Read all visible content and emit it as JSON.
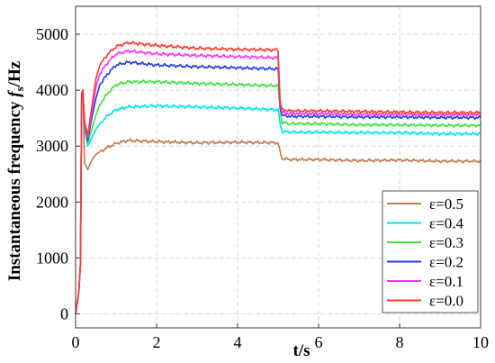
{
  "chart_data": {
    "type": "line",
    "xlabel_main": "t/s",
    "ylabel_parts": [
      "Instantaneous frequency ",
      "f",
      "s",
      "/Hz"
    ],
    "xlim": [
      0,
      10
    ],
    "ylim": [
      -250,
      5500
    ],
    "xticks": [
      "0",
      "2",
      "4",
      "6",
      "8",
      "10"
    ],
    "yticks": [
      "0",
      "1000",
      "2000",
      "3000",
      "4000",
      "5000"
    ],
    "grid": true,
    "legend_position": "bottom-right",
    "series": [
      {
        "name": "ε=0.5",
        "color": "#c07a50",
        "x": [
          0.0,
          0.08,
          0.12,
          0.15,
          0.18,
          0.22,
          0.3,
          0.4,
          0.5,
          0.6,
          0.8,
          1.0,
          1.3,
          2.0,
          3.0,
          4.0,
          5.0,
          5.05,
          5.1,
          5.3,
          6.0,
          7.0,
          8.0,
          9.0,
          10.0
        ],
        "y": [
          0,
          400,
          900,
          3950,
          4000,
          2700,
          2580,
          2750,
          2850,
          2900,
          2980,
          3050,
          3100,
          3080,
          3060,
          3070,
          3060,
          2880,
          2780,
          2760,
          2760,
          2740,
          2750,
          2730,
          2730
        ]
      },
      {
        "name": "ε=0.4",
        "color": "#00e5e5",
        "x": [
          0.0,
          0.08,
          0.12,
          0.15,
          0.18,
          0.22,
          0.3,
          0.4,
          0.5,
          0.6,
          0.8,
          1.0,
          1.3,
          2.0,
          3.0,
          4.0,
          5.0,
          5.05,
          5.1,
          5.3,
          6.0,
          7.0,
          8.0,
          9.0,
          10.0
        ],
        "y": [
          0,
          400,
          900,
          3950,
          4000,
          3300,
          3000,
          3150,
          3300,
          3400,
          3550,
          3650,
          3700,
          3720,
          3700,
          3680,
          3650,
          3400,
          3260,
          3250,
          3250,
          3240,
          3240,
          3220,
          3220
        ]
      },
      {
        "name": "ε=0.3",
        "color": "#3ee03e",
        "x": [
          0.0,
          0.08,
          0.12,
          0.15,
          0.18,
          0.22,
          0.3,
          0.4,
          0.5,
          0.6,
          0.8,
          1.0,
          1.3,
          2.0,
          3.0,
          4.0,
          5.0,
          5.05,
          5.1,
          5.3,
          6.0,
          7.0,
          8.0,
          9.0,
          10.0
        ],
        "y": [
          0,
          400,
          900,
          3950,
          4000,
          3350,
          3050,
          3300,
          3550,
          3750,
          3950,
          4100,
          4150,
          4150,
          4120,
          4100,
          4080,
          3650,
          3420,
          3400,
          3400,
          3380,
          3380,
          3370,
          3370
        ]
      },
      {
        "name": "ε=0.2",
        "color": "#1f3fe0",
        "x": [
          0.0,
          0.08,
          0.12,
          0.15,
          0.18,
          0.22,
          0.3,
          0.4,
          0.5,
          0.6,
          0.8,
          1.0,
          1.3,
          2.0,
          3.0,
          4.0,
          5.0,
          5.05,
          5.1,
          5.3,
          6.0,
          7.0,
          8.0,
          9.0,
          10.0
        ],
        "y": [
          0,
          400,
          900,
          3950,
          4000,
          3400,
          3100,
          3500,
          3850,
          4100,
          4300,
          4450,
          4500,
          4450,
          4420,
          4400,
          4380,
          3700,
          3550,
          3530,
          3530,
          3520,
          3520,
          3510,
          3510
        ]
      },
      {
        "name": "ε=0.1",
        "color": "#ff33ff",
        "x": [
          0.0,
          0.08,
          0.12,
          0.15,
          0.18,
          0.22,
          0.3,
          0.4,
          0.5,
          0.6,
          0.8,
          1.0,
          1.3,
          2.0,
          3.0,
          4.0,
          5.0,
          5.05,
          5.1,
          5.3,
          6.0,
          7.0,
          8.0,
          9.0,
          10.0
        ],
        "y": [
          0,
          400,
          900,
          3950,
          4000,
          3420,
          3150,
          3600,
          4050,
          4300,
          4500,
          4650,
          4700,
          4650,
          4620,
          4600,
          4580,
          3750,
          3600,
          3580,
          3580,
          3570,
          3570,
          3560,
          3560
        ]
      },
      {
        "name": "ε=0.0",
        "color": "#ff3b30",
        "x": [
          0.0,
          0.08,
          0.12,
          0.15,
          0.18,
          0.22,
          0.3,
          0.4,
          0.5,
          0.6,
          0.8,
          1.0,
          1.3,
          2.0,
          3.0,
          4.0,
          5.0,
          5.05,
          5.1,
          5.3,
          6.0,
          7.0,
          8.0,
          9.0,
          10.0
        ],
        "y": [
          0,
          400,
          900,
          3950,
          4000,
          3450,
          3200,
          3700,
          4200,
          4450,
          4650,
          4780,
          4850,
          4800,
          4750,
          4730,
          4720,
          3800,
          3650,
          3630,
          3630,
          3620,
          3610,
          3600,
          3600
        ]
      }
    ]
  }
}
